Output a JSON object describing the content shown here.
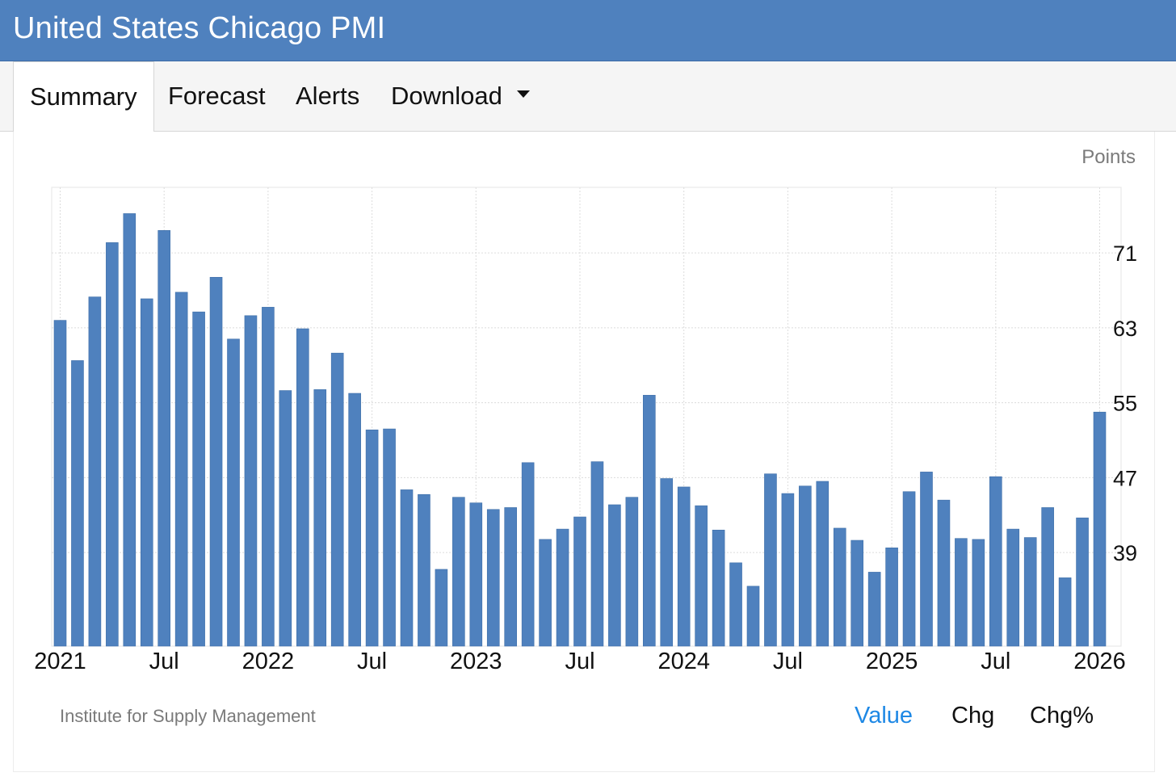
{
  "header": {
    "title": "United States Chicago PMI"
  },
  "tabs": [
    {
      "label": "Summary",
      "active": true
    },
    {
      "label": "Forecast",
      "active": false
    },
    {
      "label": "Alerts",
      "active": false
    },
    {
      "label": "Download",
      "active": false,
      "has_dropdown": true
    }
  ],
  "icons": {
    "download_dropdown": "caret-down-icon"
  },
  "colors": {
    "header": "#4f81be",
    "bar": "#4f81be",
    "active_option": "#1e88e5"
  },
  "footer": {
    "source": "Institute for Supply Management",
    "options": [
      {
        "label": "Value",
        "active": true
      },
      {
        "label": "Chg",
        "active": false
      },
      {
        "label": "Chg%",
        "active": false
      }
    ]
  },
  "chart_data": {
    "type": "bar",
    "unit": "Points",
    "ylim": [
      29,
      78
    ],
    "yticks": [
      39,
      47,
      55,
      63,
      71
    ],
    "y_axis_position": "right",
    "grid": true,
    "xtick_labels": [
      "2021",
      "Jul",
      "2022",
      "Jul",
      "2023",
      "Jul",
      "2024",
      "Jul",
      "2025",
      "Jul",
      "2026"
    ],
    "categories": [
      "2021-01",
      "2021-02",
      "2021-03",
      "2021-04",
      "2021-05",
      "2021-06",
      "2021-07",
      "2021-08",
      "2021-09",
      "2021-10",
      "2021-11",
      "2021-12",
      "2022-01",
      "2022-02",
      "2022-03",
      "2022-04",
      "2022-05",
      "2022-06",
      "2022-07",
      "2022-08",
      "2022-09",
      "2022-10",
      "2022-11",
      "2022-12",
      "2023-01",
      "2023-02",
      "2023-03",
      "2023-04",
      "2023-05",
      "2023-06",
      "2023-07",
      "2023-08",
      "2023-09",
      "2023-10",
      "2023-11",
      "2023-12",
      "2024-01",
      "2024-02",
      "2024-03",
      "2024-04",
      "2024-05",
      "2024-06",
      "2024-07",
      "2024-08",
      "2024-09",
      "2024-10",
      "2024-11",
      "2024-12",
      "2025-01",
      "2025-02",
      "2025-03",
      "2025-04",
      "2025-05",
      "2025-06",
      "2025-07",
      "2025-08",
      "2025-09",
      "2025-10",
      "2025-11",
      "2025-12",
      "2026-01"
    ],
    "values": [
      63.8,
      59.5,
      66.3,
      72.1,
      75.2,
      66.1,
      73.4,
      66.8,
      64.7,
      68.4,
      61.8,
      64.3,
      65.2,
      56.3,
      62.9,
      56.4,
      60.3,
      56.0,
      52.1,
      52.2,
      45.7,
      45.2,
      37.2,
      44.9,
      44.3,
      43.6,
      43.8,
      48.6,
      40.4,
      41.5,
      42.8,
      48.7,
      44.1,
      44.9,
      55.8,
      46.9,
      46.0,
      44.0,
      41.4,
      37.9,
      35.4,
      47.4,
      45.3,
      46.1,
      46.6,
      41.6,
      40.3,
      36.9,
      39.5,
      45.5,
      47.6,
      44.6,
      40.5,
      40.4,
      47.1,
      41.5,
      40.6,
      43.8,
      36.3,
      42.7,
      54.0
    ]
  }
}
